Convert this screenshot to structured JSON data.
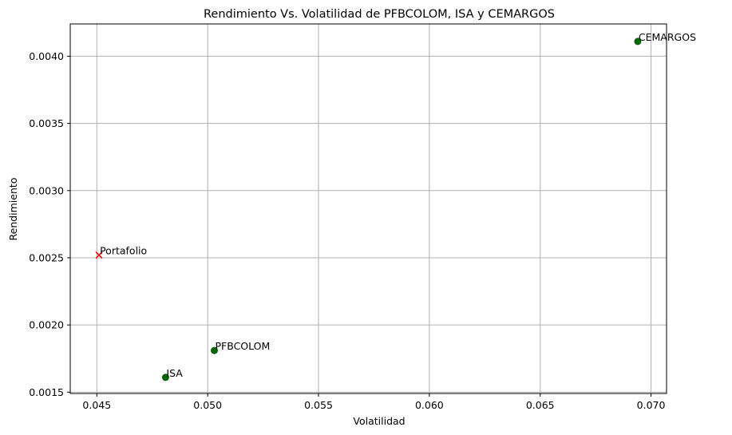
{
  "chart_data": {
    "type": "scatter",
    "title": "Rendimiento Vs. Volatilidad de PFBCOLOM, ISA y CEMARGOS",
    "xlabel": "Volatilidad",
    "ylabel": "Rendimiento",
    "xlim": [
      0.0438,
      0.0707
    ],
    "ylim": [
      0.00149,
      0.00424
    ],
    "xticks": [
      "0.045",
      "0.050",
      "0.055",
      "0.060",
      "0.065",
      "0.070"
    ],
    "xtick_values": [
      0.045,
      0.05,
      0.055,
      0.06,
      0.065,
      0.07
    ],
    "yticks": [
      "0.0015",
      "0.0020",
      "0.0025",
      "0.0030",
      "0.0035",
      "0.0040"
    ],
    "ytick_values": [
      0.0015,
      0.002,
      0.0025,
      0.003,
      0.0035,
      0.004
    ],
    "grid": true,
    "points": [
      {
        "label": "PFBCOLOM",
        "x": 0.0503,
        "y": 0.00181,
        "marker": "circle",
        "color": "#006400"
      },
      {
        "label": "ISA",
        "x": 0.0481,
        "y": 0.00161,
        "marker": "circle",
        "color": "#006400"
      },
      {
        "label": "CEMARGOS",
        "x": 0.0694,
        "y": 0.00411,
        "marker": "circle",
        "color": "#006400"
      },
      {
        "label": "Portafolio",
        "x": 0.0451,
        "y": 0.00252,
        "marker": "x",
        "color": "#ff0000"
      }
    ]
  }
}
